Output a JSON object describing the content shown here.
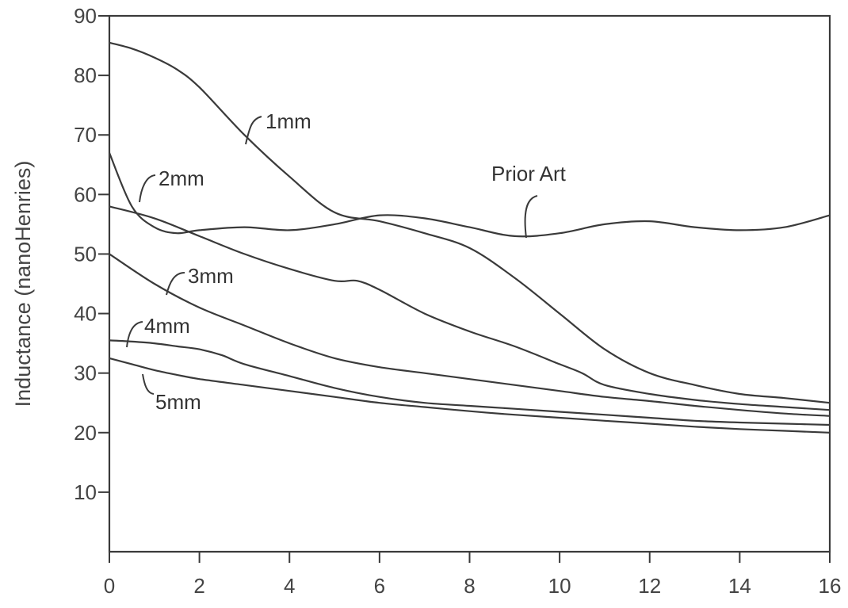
{
  "chart_data": {
    "type": "line",
    "title": "",
    "xlabel": "",
    "ylabel": "Inductance (nanoHenries)",
    "xlim": [
      0,
      16
    ],
    "ylim": [
      0,
      90
    ],
    "x_ticks": [
      0,
      2,
      4,
      6,
      8,
      10,
      12,
      14,
      16
    ],
    "y_ticks": [
      10,
      20,
      30,
      40,
      50,
      60,
      70,
      80,
      90
    ],
    "grid": false,
    "legend": "inline labels",
    "series": [
      {
        "name": "1mm",
        "x": [
          0,
          0.5,
          1,
          1.5,
          2,
          3,
          4,
          5,
          6,
          7,
          8,
          9,
          10,
          11,
          12,
          13,
          14,
          15,
          16
        ],
        "y": [
          85.5,
          84.5,
          83,
          81,
          78,
          70,
          63,
          57,
          55.5,
          53.5,
          51,
          46,
          40,
          34,
          30,
          28,
          26.5,
          25.8,
          25
        ]
      },
      {
        "name": "Prior Art",
        "x": [
          0,
          0.5,
          1,
          1.5,
          2,
          3,
          4,
          5,
          6,
          7,
          8,
          9,
          10,
          11,
          12,
          13,
          14,
          15,
          16
        ],
        "y": [
          67,
          58,
          54.5,
          53.5,
          54,
          54.5,
          54,
          55,
          56.5,
          56,
          54.5,
          53,
          53.5,
          55,
          55.5,
          54.5,
          54,
          54.5,
          56.5
        ]
      },
      {
        "name": "2mm",
        "x": [
          0,
          1,
          2,
          3,
          4,
          5,
          5.5,
          6,
          7,
          8,
          9,
          10,
          10.5,
          11,
          12,
          13,
          14,
          15,
          16
        ],
        "y": [
          58,
          56,
          53,
          50,
          47.5,
          45.5,
          45.5,
          44,
          40,
          37,
          34.5,
          31.5,
          30,
          28,
          26.5,
          25.5,
          24.8,
          24.3,
          23.8
        ]
      },
      {
        "name": "3mm",
        "x": [
          0,
          1,
          2,
          3,
          4,
          5,
          6,
          7,
          8,
          9,
          10,
          11,
          12,
          13,
          14,
          15,
          16
        ],
        "y": [
          50,
          45,
          41,
          38,
          35,
          32.5,
          31,
          30,
          29,
          28,
          27,
          26,
          25.3,
          24.5,
          23.8,
          23.2,
          22.8
        ]
      },
      {
        "name": "4mm",
        "x": [
          0,
          0.5,
          1,
          1.5,
          2,
          2.5,
          3,
          4,
          5,
          6,
          7,
          8,
          9,
          10,
          11,
          12,
          13,
          14,
          15,
          16
        ],
        "y": [
          35.5,
          35.3,
          35,
          34.5,
          34,
          33,
          31.5,
          29.5,
          27.5,
          26,
          25,
          24.5,
          24,
          23.5,
          23,
          22.5,
          22,
          21.7,
          21.5,
          21.3
        ]
      },
      {
        "name": "5mm",
        "x": [
          0,
          0.5,
          1,
          1.5,
          2,
          3,
          4,
          5,
          6,
          7,
          8,
          9,
          10,
          11,
          12,
          13,
          14,
          15,
          16
        ],
        "y": [
          32.5,
          31.5,
          30.5,
          29.7,
          29,
          28,
          27,
          26,
          25,
          24.3,
          23.6,
          23,
          22.5,
          22,
          21.5,
          21,
          20.6,
          20.3,
          20
        ]
      }
    ]
  }
}
